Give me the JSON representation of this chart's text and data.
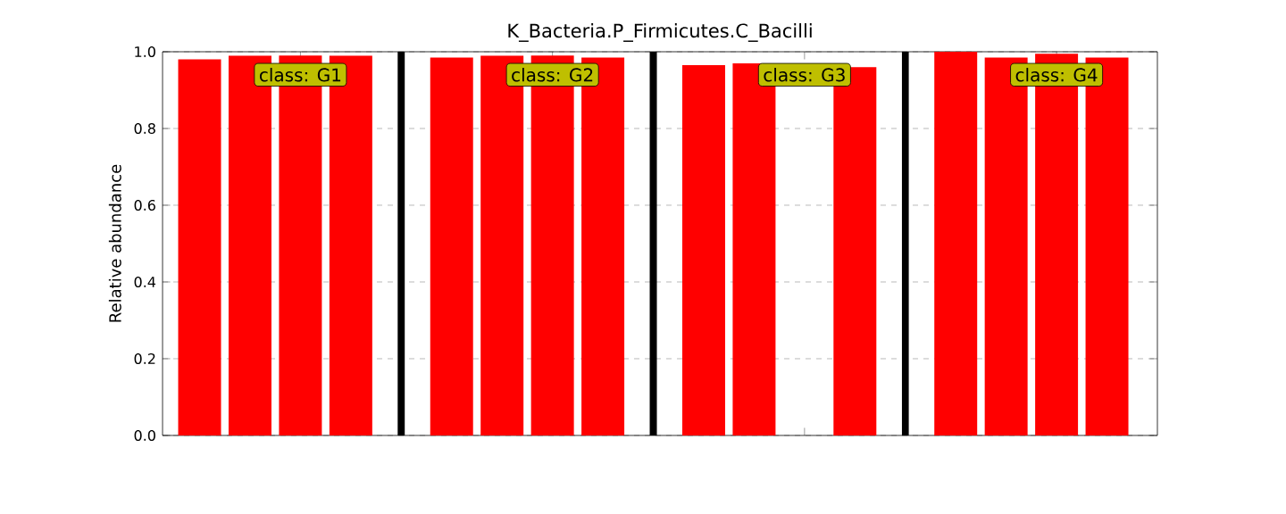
{
  "chart_data": {
    "type": "bar",
    "title": "K_Bacteria.P_Firmicutes.C_Bacilli",
    "ylabel": "Relative abundance",
    "categories": [
      null,
      null,
      null,
      null
    ],
    "series": [
      {
        "color": "#ff0000",
        "values": [
          0.98,
          0.985,
          0.965,
          1.0
        ]
      },
      {
        "color": "#ff0000",
        "values": [
          0.99,
          0.99,
          0.97,
          0.985
        ]
      },
      {
        "color": "#ff0000",
        "values": [
          0.99,
          0.99,
          null,
          0.995
        ]
      },
      {
        "color": "#ff0000",
        "values": [
          0.99,
          0.985,
          0.96,
          0.985
        ]
      }
    ],
    "ylim": [
      0,
      1
    ],
    "yticks": [
      {
        "value": 0,
        "label": "0.0"
      },
      {
        "value": 0.2,
        "label": "0.2"
      },
      {
        "value": 0.4,
        "label": "0.4"
      },
      {
        "value": 0.6,
        "label": "0.6"
      },
      {
        "value": 0.8,
        "label": "0.8"
      },
      {
        "value": 1,
        "label": "1.0"
      }
    ],
    "tick_labels": "y",
    "grid": "y",
    "annotations": [
      "class: G1",
      "class: G2",
      "class: G3",
      "class: G4"
    ]
  }
}
